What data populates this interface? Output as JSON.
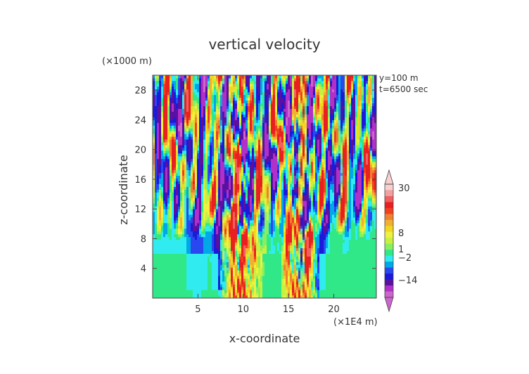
{
  "chart_data": {
    "type": "heatmap",
    "title": "vertical velocity",
    "xlabel": "x-coordinate",
    "ylabel": "z-coordinate",
    "x_unit": "(×1E4 m)",
    "y_unit": "(×1000 m)",
    "annotations": [
      "y=100  m",
      "t=6500 sec"
    ],
    "x_ticks": [
      5,
      10,
      15,
      20
    ],
    "y_ticks": [
      4,
      8,
      12,
      16,
      20,
      24,
      28
    ],
    "xlim": [
      0,
      24.7
    ],
    "ylim": [
      0,
      30
    ],
    "colorbar": {
      "labels": [
        "30",
        "8",
        "1",
        "−2",
        "−14"
      ],
      "levels": [
        -20,
        -14,
        -8,
        -5,
        -3,
        -2,
        -1,
        0,
        1,
        2,
        3,
        4,
        5,
        6,
        7,
        8,
        14,
        20,
        30
      ],
      "colors": [
        "#cc66cc",
        "#b030c8",
        "#5a10a0",
        "#1a1ad8",
        "#2a48f0",
        "#00a8e8",
        "#30ecf0",
        "#30e888",
        "#88f060",
        "#c8f040",
        "#f0f040",
        "#f0d820",
        "#f0b030",
        "#f08030",
        "#f04020",
        "#e82020",
        "#f06060",
        "#f0a0a0",
        "#f8d0d0"
      ]
    }
  }
}
